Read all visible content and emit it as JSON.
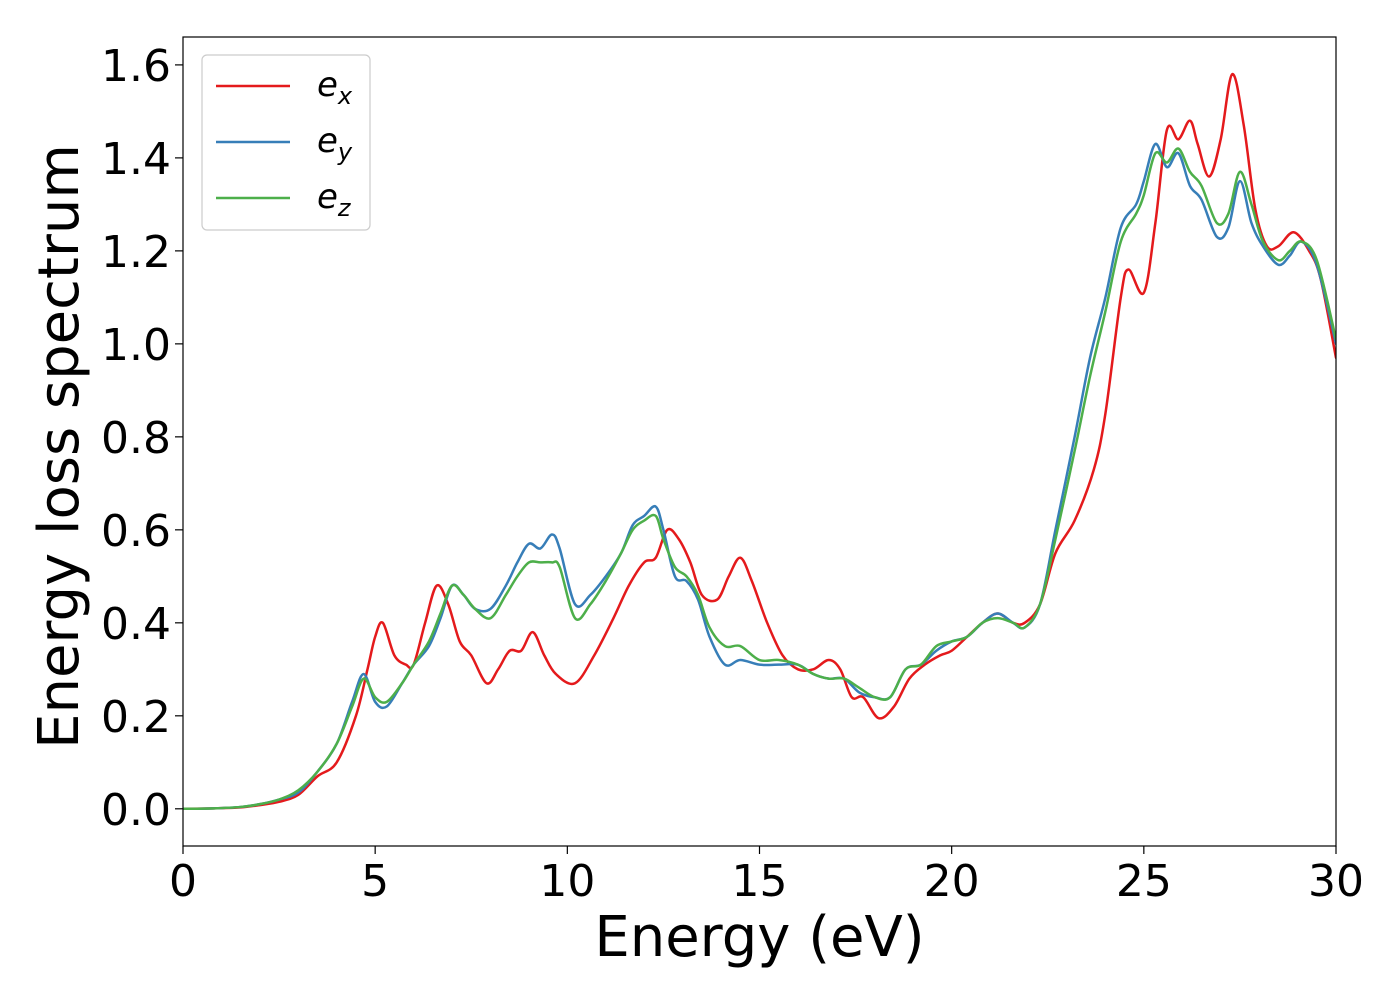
{
  "chart_data": {
    "type": "line",
    "title": "",
    "xlabel": "Energy (eV)",
    "ylabel": "Energy loss spectrum",
    "xlim": [
      0,
      30
    ],
    "ylim": [
      -0.08,
      1.66
    ],
    "xticks": [
      0,
      5,
      10,
      15,
      20,
      25,
      30
    ],
    "yticks": [
      0.0,
      0.2,
      0.4,
      0.6,
      0.8,
      1.0,
      1.2,
      1.4,
      1.6
    ],
    "xtick_labels": [
      "0",
      "5",
      "10",
      "15",
      "20",
      "25",
      "30"
    ],
    "ytick_labels": [
      "0.0",
      "0.2",
      "0.4",
      "0.6",
      "0.8",
      "1.0",
      "1.2",
      "1.4",
      "1.6"
    ],
    "grid": false,
    "legend": "top-left",
    "series": [
      {
        "name_base": "e",
        "name_sub": "x",
        "color": "#e41a1c",
        "points": [
          [
            0,
            0.0
          ],
          [
            0.8,
            0.001
          ],
          [
            1.5,
            0.003
          ],
          [
            2.0,
            0.008
          ],
          [
            2.5,
            0.015
          ],
          [
            3.0,
            0.03
          ],
          [
            3.5,
            0.07
          ],
          [
            4.0,
            0.1
          ],
          [
            4.5,
            0.2
          ],
          [
            4.8,
            0.3
          ],
          [
            5.0,
            0.37
          ],
          [
            5.2,
            0.4
          ],
          [
            5.5,
            0.33
          ],
          [
            5.8,
            0.31
          ],
          [
            6.0,
            0.31
          ],
          [
            6.3,
            0.4
          ],
          [
            6.6,
            0.48
          ],
          [
            6.9,
            0.44
          ],
          [
            7.2,
            0.36
          ],
          [
            7.5,
            0.33
          ],
          [
            7.9,
            0.27
          ],
          [
            8.2,
            0.3
          ],
          [
            8.5,
            0.34
          ],
          [
            8.8,
            0.34
          ],
          [
            9.1,
            0.38
          ],
          [
            9.4,
            0.33
          ],
          [
            9.7,
            0.29
          ],
          [
            10.2,
            0.27
          ],
          [
            10.7,
            0.33
          ],
          [
            11.2,
            0.41
          ],
          [
            11.6,
            0.48
          ],
          [
            12.0,
            0.53
          ],
          [
            12.3,
            0.54
          ],
          [
            12.6,
            0.6
          ],
          [
            12.9,
            0.58
          ],
          [
            13.2,
            0.53
          ],
          [
            13.5,
            0.46
          ],
          [
            13.9,
            0.45
          ],
          [
            14.2,
            0.5
          ],
          [
            14.5,
            0.54
          ],
          [
            14.8,
            0.49
          ],
          [
            15.2,
            0.4
          ],
          [
            15.6,
            0.33
          ],
          [
            16.0,
            0.3
          ],
          [
            16.4,
            0.3
          ],
          [
            16.8,
            0.32
          ],
          [
            17.1,
            0.3
          ],
          [
            17.4,
            0.24
          ],
          [
            17.7,
            0.24
          ],
          [
            18.1,
            0.195
          ],
          [
            18.5,
            0.22
          ],
          [
            18.9,
            0.28
          ],
          [
            19.3,
            0.31
          ],
          [
            19.7,
            0.33
          ],
          [
            20.0,
            0.34
          ],
          [
            20.4,
            0.37
          ],
          [
            20.8,
            0.4
          ],
          [
            21.2,
            0.42
          ],
          [
            21.6,
            0.4
          ],
          [
            21.9,
            0.4
          ],
          [
            22.3,
            0.44
          ],
          [
            22.7,
            0.55
          ],
          [
            23.2,
            0.62
          ],
          [
            23.7,
            0.73
          ],
          [
            24.0,
            0.85
          ],
          [
            24.4,
            1.1
          ],
          [
            24.6,
            1.16
          ],
          [
            25.0,
            1.11
          ],
          [
            25.3,
            1.26
          ],
          [
            25.6,
            1.46
          ],
          [
            25.9,
            1.44
          ],
          [
            26.2,
            1.48
          ],
          [
            26.4,
            1.43
          ],
          [
            26.7,
            1.36
          ],
          [
            27.0,
            1.44
          ],
          [
            27.3,
            1.58
          ],
          [
            27.6,
            1.47
          ],
          [
            27.9,
            1.29
          ],
          [
            28.2,
            1.21
          ],
          [
            28.5,
            1.21
          ],
          [
            28.9,
            1.24
          ],
          [
            29.3,
            1.2
          ],
          [
            29.6,
            1.14
          ],
          [
            30.0,
            0.97
          ]
        ]
      },
      {
        "name_base": "e",
        "name_sub": "y",
        "color": "#377eb8",
        "points": [
          [
            0,
            0.0
          ],
          [
            0.8,
            0.001
          ],
          [
            1.5,
            0.004
          ],
          [
            2.0,
            0.01
          ],
          [
            2.5,
            0.02
          ],
          [
            3.0,
            0.035
          ],
          [
            3.5,
            0.08
          ],
          [
            4.0,
            0.14
          ],
          [
            4.4,
            0.23
          ],
          [
            4.7,
            0.29
          ],
          [
            5.0,
            0.23
          ],
          [
            5.3,
            0.22
          ],
          [
            5.7,
            0.27
          ],
          [
            6.0,
            0.31
          ],
          [
            6.4,
            0.35
          ],
          [
            6.7,
            0.41
          ],
          [
            7.0,
            0.48
          ],
          [
            7.3,
            0.46
          ],
          [
            7.6,
            0.43
          ],
          [
            8.0,
            0.43
          ],
          [
            8.4,
            0.48
          ],
          [
            8.7,
            0.53
          ],
          [
            9.0,
            0.57
          ],
          [
            9.3,
            0.56
          ],
          [
            9.6,
            0.59
          ],
          [
            9.8,
            0.56
          ],
          [
            10.2,
            0.44
          ],
          [
            10.6,
            0.46
          ],
          [
            11.0,
            0.5
          ],
          [
            11.4,
            0.55
          ],
          [
            11.7,
            0.61
          ],
          [
            12.0,
            0.63
          ],
          [
            12.3,
            0.65
          ],
          [
            12.5,
            0.6
          ],
          [
            12.8,
            0.5
          ],
          [
            13.1,
            0.49
          ],
          [
            13.4,
            0.45
          ],
          [
            13.7,
            0.37
          ],
          [
            14.1,
            0.31
          ],
          [
            14.5,
            0.32
          ],
          [
            15.0,
            0.31
          ],
          [
            15.5,
            0.31
          ],
          [
            16.0,
            0.31
          ],
          [
            16.4,
            0.29
          ],
          [
            16.8,
            0.28
          ],
          [
            17.2,
            0.28
          ],
          [
            17.6,
            0.25
          ],
          [
            18.0,
            0.24
          ],
          [
            18.4,
            0.24
          ],
          [
            18.8,
            0.3
          ],
          [
            19.2,
            0.31
          ],
          [
            19.6,
            0.34
          ],
          [
            20.0,
            0.36
          ],
          [
            20.4,
            0.37
          ],
          [
            20.8,
            0.4
          ],
          [
            21.2,
            0.42
          ],
          [
            21.6,
            0.4
          ],
          [
            21.9,
            0.39
          ],
          [
            22.3,
            0.44
          ],
          [
            22.7,
            0.6
          ],
          [
            23.2,
            0.8
          ],
          [
            23.6,
            0.97
          ],
          [
            24.0,
            1.1
          ],
          [
            24.4,
            1.25
          ],
          [
            24.8,
            1.3
          ],
          [
            25.0,
            1.35
          ],
          [
            25.3,
            1.43
          ],
          [
            25.6,
            1.38
          ],
          [
            25.9,
            1.41
          ],
          [
            26.2,
            1.34
          ],
          [
            26.5,
            1.31
          ],
          [
            26.9,
            1.23
          ],
          [
            27.2,
            1.25
          ],
          [
            27.5,
            1.35
          ],
          [
            27.8,
            1.26
          ],
          [
            28.1,
            1.21
          ],
          [
            28.5,
            1.17
          ],
          [
            28.8,
            1.19
          ],
          [
            29.1,
            1.22
          ],
          [
            29.5,
            1.17
          ],
          [
            30.0,
            1.0
          ]
        ]
      },
      {
        "name_base": "e",
        "name_sub": "z",
        "color": "#4daf4a",
        "points": [
          [
            0,
            0.0
          ],
          [
            0.8,
            0.001
          ],
          [
            1.5,
            0.004
          ],
          [
            2.0,
            0.01
          ],
          [
            2.5,
            0.02
          ],
          [
            3.0,
            0.04
          ],
          [
            3.5,
            0.08
          ],
          [
            4.0,
            0.14
          ],
          [
            4.4,
            0.22
          ],
          [
            4.7,
            0.28
          ],
          [
            5.0,
            0.24
          ],
          [
            5.3,
            0.23
          ],
          [
            5.7,
            0.27
          ],
          [
            6.0,
            0.31
          ],
          [
            6.4,
            0.36
          ],
          [
            6.7,
            0.42
          ],
          [
            7.0,
            0.48
          ],
          [
            7.3,
            0.46
          ],
          [
            7.6,
            0.43
          ],
          [
            8.0,
            0.41
          ],
          [
            8.4,
            0.46
          ],
          [
            8.7,
            0.5
          ],
          [
            9.0,
            0.53
          ],
          [
            9.3,
            0.53
          ],
          [
            9.6,
            0.53
          ],
          [
            9.8,
            0.52
          ],
          [
            10.2,
            0.41
          ],
          [
            10.6,
            0.44
          ],
          [
            11.0,
            0.49
          ],
          [
            11.4,
            0.55
          ],
          [
            11.7,
            0.6
          ],
          [
            12.0,
            0.62
          ],
          [
            12.3,
            0.63
          ],
          [
            12.5,
            0.58
          ],
          [
            12.8,
            0.52
          ],
          [
            13.1,
            0.5
          ],
          [
            13.4,
            0.46
          ],
          [
            13.7,
            0.39
          ],
          [
            14.1,
            0.35
          ],
          [
            14.5,
            0.35
          ],
          [
            15.0,
            0.32
          ],
          [
            15.5,
            0.32
          ],
          [
            16.0,
            0.31
          ],
          [
            16.4,
            0.29
          ],
          [
            16.8,
            0.28
          ],
          [
            17.2,
            0.28
          ],
          [
            17.6,
            0.26
          ],
          [
            18.0,
            0.24
          ],
          [
            18.4,
            0.24
          ],
          [
            18.8,
            0.3
          ],
          [
            19.2,
            0.31
          ],
          [
            19.6,
            0.35
          ],
          [
            20.0,
            0.36
          ],
          [
            20.4,
            0.37
          ],
          [
            20.8,
            0.4
          ],
          [
            21.2,
            0.41
          ],
          [
            21.6,
            0.4
          ],
          [
            21.9,
            0.39
          ],
          [
            22.3,
            0.44
          ],
          [
            22.7,
            0.58
          ],
          [
            23.2,
            0.77
          ],
          [
            23.6,
            0.93
          ],
          [
            24.0,
            1.07
          ],
          [
            24.4,
            1.22
          ],
          [
            24.8,
            1.28
          ],
          [
            25.0,
            1.32
          ],
          [
            25.3,
            1.41
          ],
          [
            25.6,
            1.39
          ],
          [
            25.9,
            1.42
          ],
          [
            26.2,
            1.37
          ],
          [
            26.5,
            1.34
          ],
          [
            26.9,
            1.26
          ],
          [
            27.2,
            1.28
          ],
          [
            27.5,
            1.37
          ],
          [
            27.8,
            1.3
          ],
          [
            28.1,
            1.22
          ],
          [
            28.5,
            1.18
          ],
          [
            28.8,
            1.2
          ],
          [
            29.1,
            1.22
          ],
          [
            29.5,
            1.18
          ],
          [
            30.0,
            1.01
          ]
        ]
      }
    ]
  }
}
